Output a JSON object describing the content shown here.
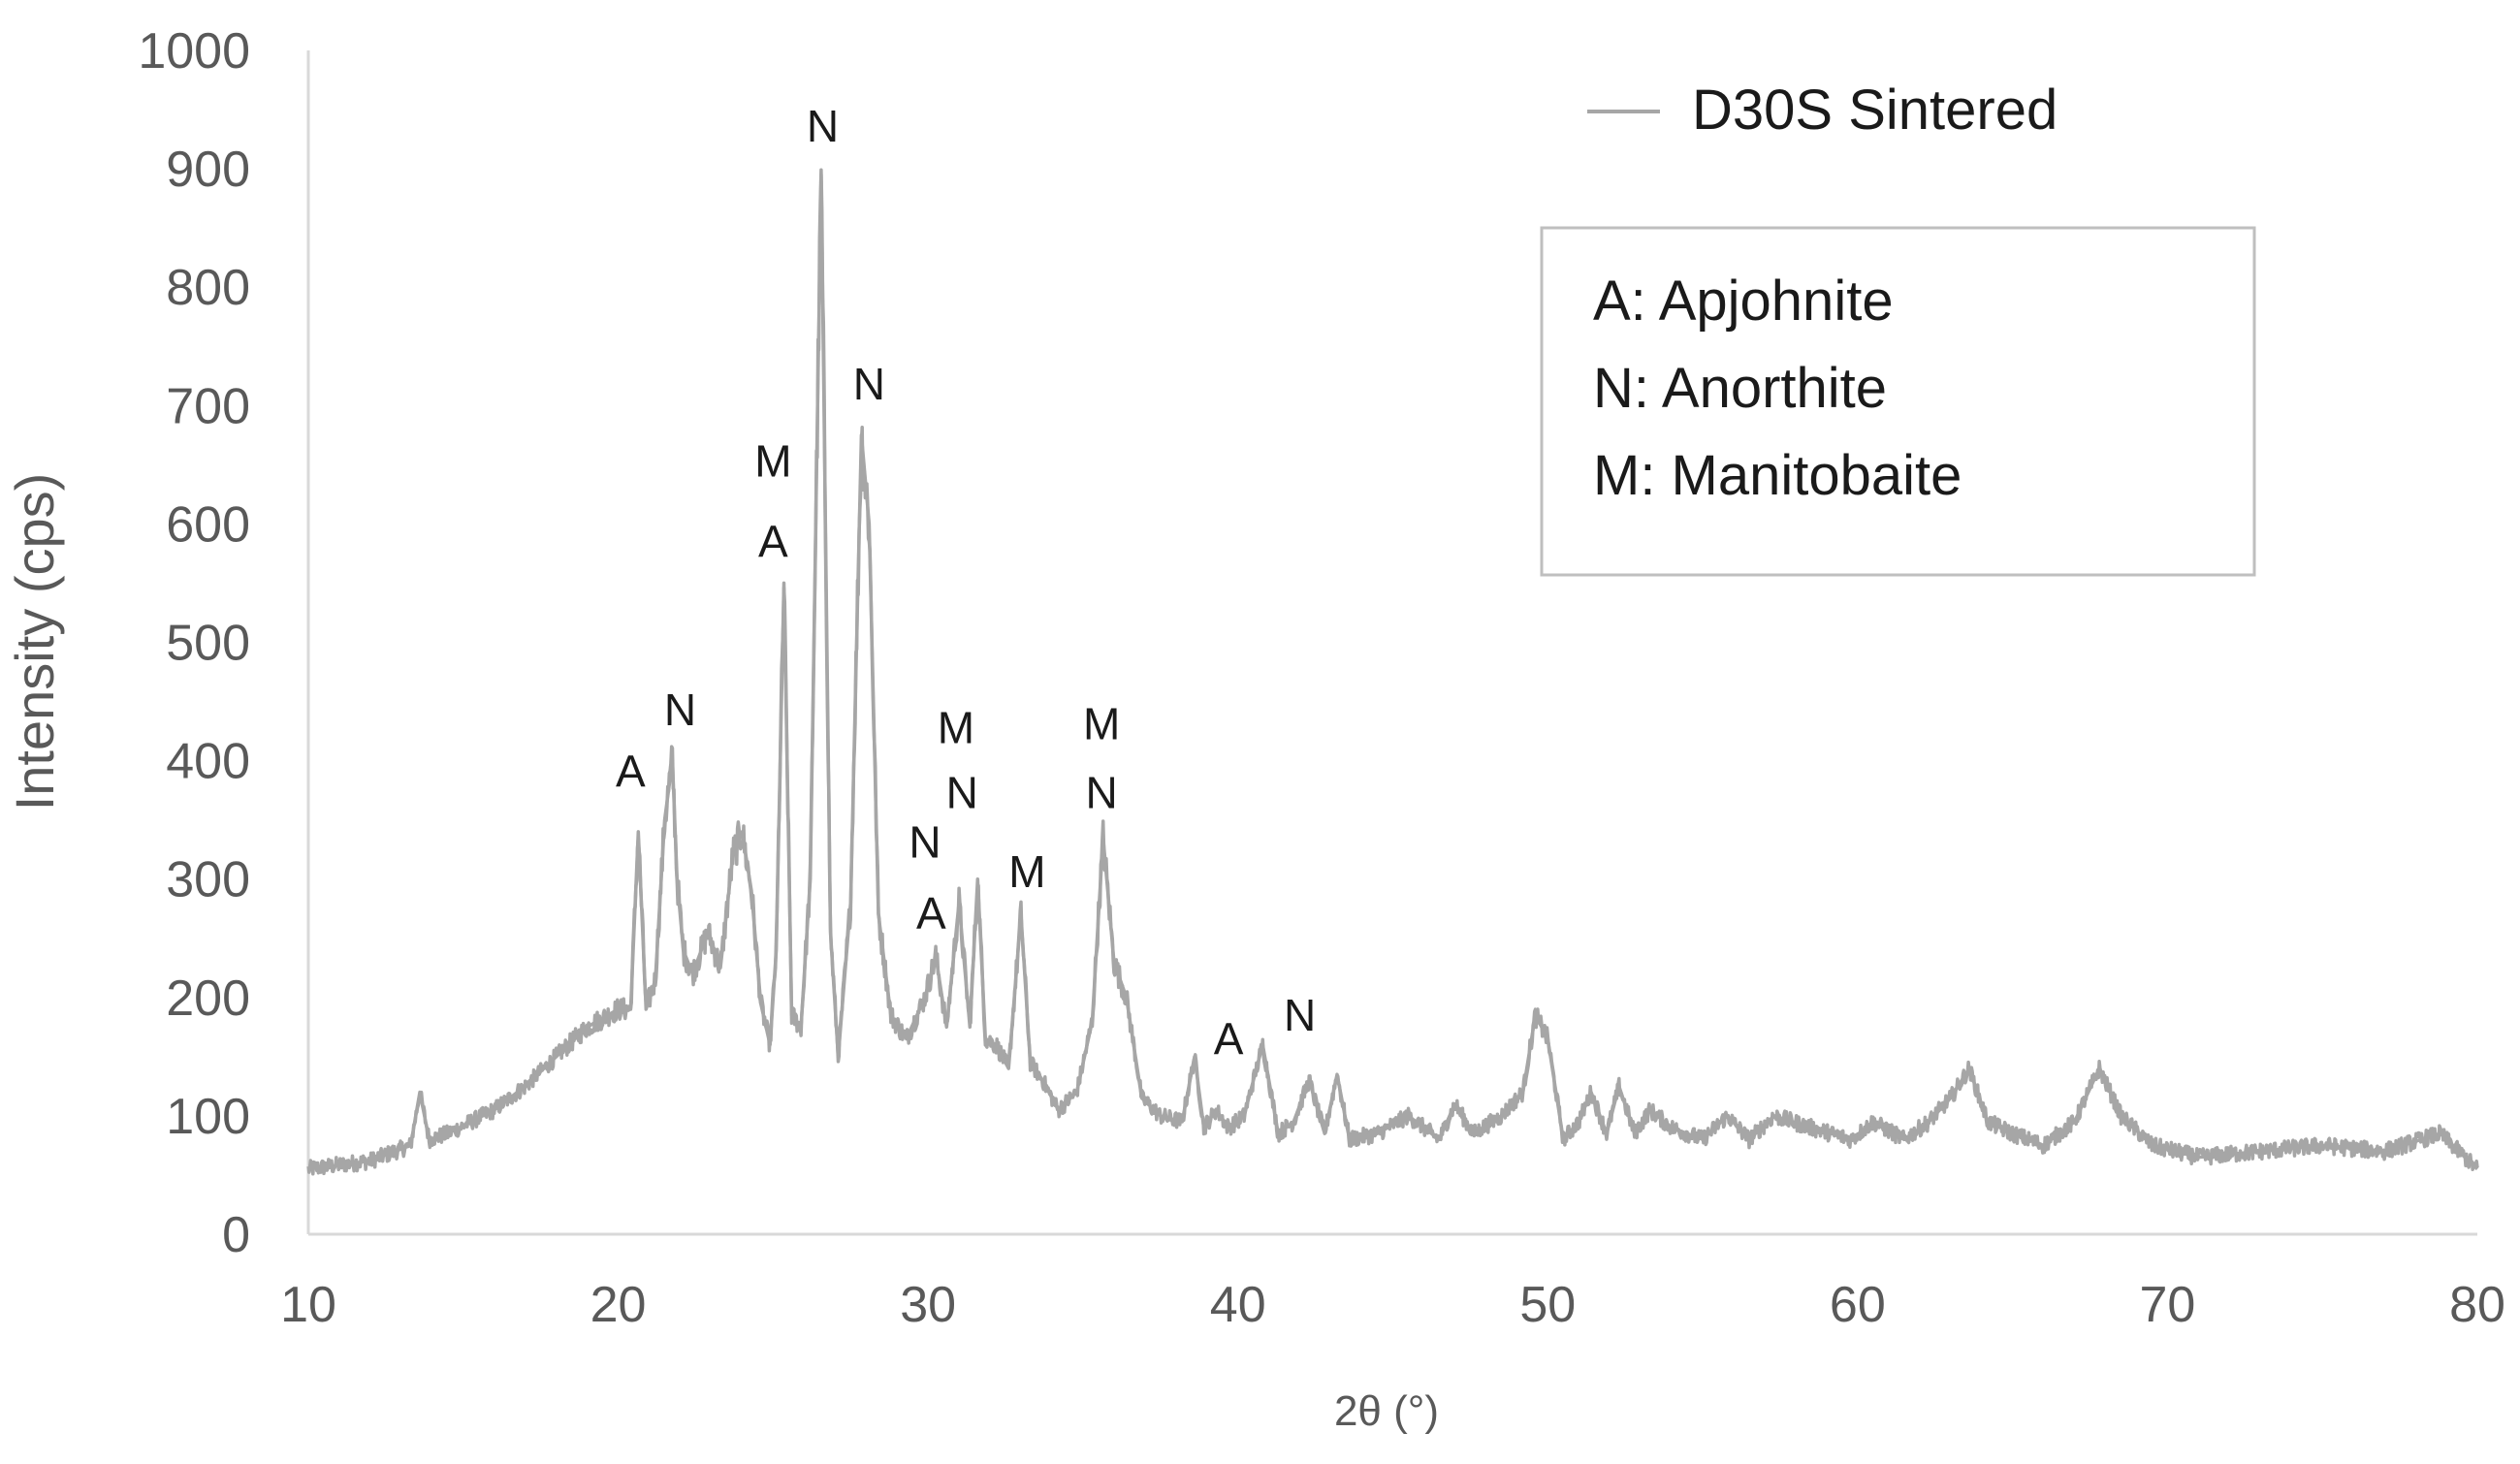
{
  "chart_data": {
    "type": "line",
    "title": "",
    "xlabel": "2θ (°)",
    "ylabel": "Intensity (cps)",
    "xlim": [
      10,
      80
    ],
    "ylim": [
      0,
      1000
    ],
    "xticks": [
      10,
      20,
      30,
      40,
      50,
      60,
      70,
      80
    ],
    "yticks": [
      0,
      100,
      200,
      300,
      400,
      500,
      600,
      700,
      800,
      900,
      1000
    ],
    "grid": false,
    "legend_position": "top-right",
    "series": [
      {
        "name": "D30S Sintered",
        "color": "#a6a6a6",
        "x": [
          10,
          12,
          13.3,
          13.6,
          13.9,
          14.5,
          16,
          17,
          18,
          19,
          20,
          20.4,
          20.65,
          20.9,
          21.2,
          21.5,
          21.75,
          21.9,
          22.1,
          22.4,
          22.9,
          23.3,
          23.7,
          24.0,
          24.3,
          24.6,
          24.9,
          25.1,
          25.35,
          25.6,
          25.9,
          26.2,
          26.55,
          26.85,
          27.1,
          27.5,
          27.85,
          28.1,
          28.4,
          28.8,
          29.3,
          29.9,
          30.25,
          30.6,
          31.0,
          31.35,
          31.6,
          31.85,
          32.2,
          32.6,
          33.0,
          33.3,
          33.7,
          34.2,
          34.8,
          35.3,
          35.65,
          36.0,
          36.4,
          36.9,
          37.5,
          38.2,
          38.6,
          38.9,
          39.3,
          39.7,
          40.2,
          40.8,
          41.3,
          41.8,
          42.3,
          42.8,
          43.2,
          43.6,
          44.5,
          45.5,
          46.5,
          47.0,
          47.6,
          48.5,
          49.2,
          49.6,
          50.0,
          50.5,
          51.0,
          51.4,
          51.9,
          52.3,
          52.8,
          53.3,
          54.0,
          55.0,
          55.8,
          56.5,
          57.3,
          58.5,
          59.8,
          60.5,
          61.5,
          62.3,
          63.0,
          63.6,
          64.2,
          65.0,
          66.0,
          67.0,
          67.8,
          68.5,
          69.5,
          71.0,
          73.0,
          75.0,
          77.0,
          78.8,
          80.0
        ],
        "y": [
          55,
          62,
          75,
          120,
          80,
          85,
          105,
          125,
          150,
          175,
          190,
          190,
          340,
          190,
          215,
          350,
          400,
          300,
          240,
          220,
          255,
          225,
          320,
          340,
          290,
          195,
          160,
          240,
          550,
          185,
          175,
          300,
          895,
          255,
          150,
          280,
          675,
          600,
          270,
          185,
          165,
          200,
          235,
          175,
          280,
          175,
          300,
          165,
          160,
          140,
          270,
          145,
          130,
          105,
          120,
          180,
          335,
          230,
          200,
          115,
          100,
          95,
          150,
          90,
          105,
          90,
          100,
          160,
          85,
          95,
          130,
          85,
          135,
          80,
          85,
          100,
          80,
          110,
          85,
          100,
          120,
          185,
          165,
          80,
          95,
          120,
          85,
          125,
          85,
          105,
          90,
          80,
          100,
          80,
          100,
          90,
          80,
          95,
          80,
          95,
          115,
          140,
          95,
          85,
          75,
          95,
          140,
          100,
          75,
          65,
          70,
          75,
          70,
          85,
          55
        ]
      }
    ],
    "annotations": [
      {
        "text": "A",
        "x": 20.4,
        "y": 378
      },
      {
        "text": "N",
        "x": 22.0,
        "y": 430
      },
      {
        "text": "M",
        "x": 25.0,
        "y": 640
      },
      {
        "text": "A",
        "x": 25.0,
        "y": 572
      },
      {
        "text": "N",
        "x": 26.6,
        "y": 923
      },
      {
        "text": "N",
        "x": 28.1,
        "y": 705
      },
      {
        "text": "N",
        "x": 29.9,
        "y": 318
      },
      {
        "text": "A",
        "x": 30.1,
        "y": 258
      },
      {
        "text": "M",
        "x": 30.9,
        "y": 415
      },
      {
        "text": "N",
        "x": 31.1,
        "y": 360
      },
      {
        "text": "M",
        "x": 33.2,
        "y": 293
      },
      {
        "text": "M",
        "x": 35.6,
        "y": 418
      },
      {
        "text": "N",
        "x": 35.6,
        "y": 360
      },
      {
        "text": "A",
        "x": 39.7,
        "y": 152
      },
      {
        "text": "N",
        "x": 42.0,
        "y": 172
      }
    ],
    "key_box": [
      "A: Apjohnite",
      "N:  Anorthite",
      "M:  Manitobaite"
    ]
  }
}
